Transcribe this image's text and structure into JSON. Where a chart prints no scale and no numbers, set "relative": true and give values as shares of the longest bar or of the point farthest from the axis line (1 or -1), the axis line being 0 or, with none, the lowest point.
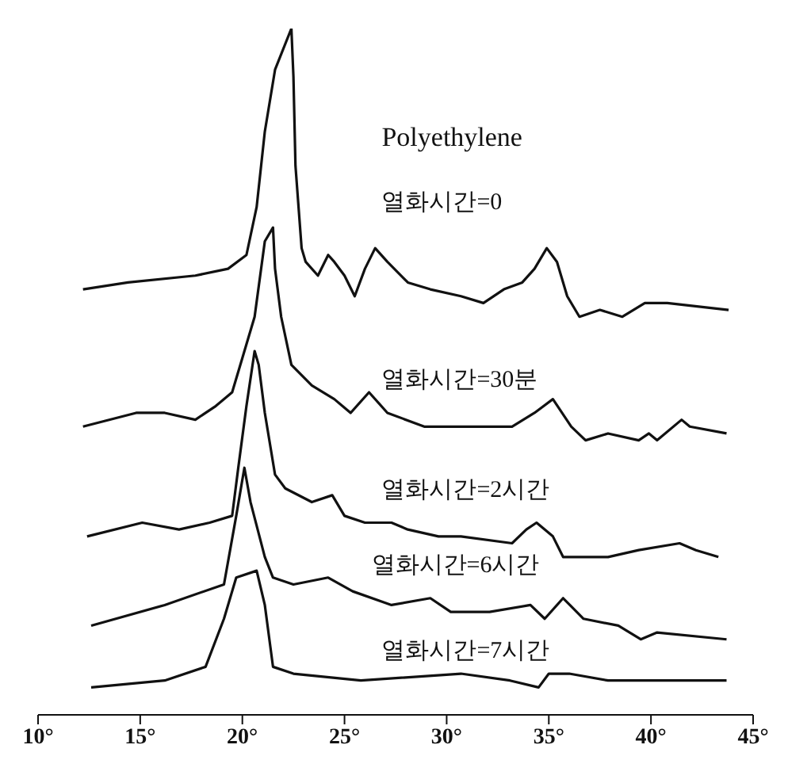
{
  "chart_data": {
    "type": "line",
    "relative": true,
    "annotations": [
      "Polyethylene"
    ],
    "xlim": [
      10,
      45
    ],
    "xticks": [
      {
        "value": 10,
        "label": "10°"
      },
      {
        "value": 15,
        "label": "15°"
      },
      {
        "value": 20,
        "label": "20°"
      },
      {
        "value": 25,
        "label": "25°"
      },
      {
        "value": 30,
        "label": "30°"
      },
      {
        "value": 35,
        "label": "35°"
      },
      {
        "value": 40,
        "label": "40°"
      },
      {
        "value": 45,
        "label": "45°"
      }
    ],
    "tick_labels": "x",
    "grid": false,
    "legend": false,
    "marker": "none",
    "line_style": "solid",
    "series": [
      {
        "name": "열화시간=0",
        "color": "#111111",
        "x": [
          12.2,
          14.4,
          17.7,
          19.3,
          20.2,
          20.7,
          21.1,
          21.6,
          22.4,
          22.5,
          22.6,
          22.9,
          23.1,
          23.7,
          24.2,
          24.5,
          25.0,
          25.5,
          26.0,
          26.5,
          27.1,
          28.1,
          29.2,
          30.7,
          31.8,
          32.8,
          33.7,
          34.3,
          34.9,
          35.4,
          35.9,
          36.5,
          37.5,
          38.6,
          39.7,
          40.8,
          43.8
        ],
        "values": [
          0.62,
          0.63,
          0.64,
          0.65,
          0.67,
          0.74,
          0.85,
          0.94,
          1.0,
          0.93,
          0.8,
          0.68,
          0.66,
          0.64,
          0.67,
          0.66,
          0.64,
          0.61,
          0.65,
          0.68,
          0.66,
          0.63,
          0.62,
          0.61,
          0.6,
          0.62,
          0.63,
          0.65,
          0.68,
          0.66,
          0.61,
          0.58,
          0.59,
          0.58,
          0.6,
          0.6,
          0.59
        ]
      },
      {
        "name": "열화시간=30분",
        "color": "#111111",
        "x": [
          12.2,
          14.8,
          16.2,
          17.7,
          18.7,
          19.5,
          20.0,
          20.6,
          21.1,
          21.5,
          21.6,
          21.9,
          22.4,
          23.4,
          24.5,
          25.3,
          26.2,
          27.1,
          28.9,
          30.7,
          33.2,
          34.3,
          35.2,
          36.1,
          36.8,
          37.9,
          39.4,
          39.9,
          40.3,
          41.5,
          41.9,
          43.7
        ],
        "values": [
          0.42,
          0.44,
          0.44,
          0.43,
          0.45,
          0.47,
          0.52,
          0.58,
          0.69,
          0.71,
          0.65,
          0.58,
          0.51,
          0.48,
          0.46,
          0.44,
          0.47,
          0.44,
          0.42,
          0.42,
          0.42,
          0.44,
          0.46,
          0.42,
          0.4,
          0.41,
          0.4,
          0.41,
          0.4,
          0.43,
          0.42,
          0.41
        ]
      },
      {
        "name": "열화시간=2시간",
        "color": "#111111",
        "x": [
          12.4,
          15.1,
          16.9,
          18.4,
          19.5,
          19.8,
          20.2,
          20.6,
          20.8,
          21.1,
          21.6,
          22.1,
          23.4,
          24.4,
          25.0,
          26.0,
          27.3,
          28.1,
          29.6,
          30.7,
          33.2,
          33.9,
          34.4,
          35.2,
          35.7,
          36.8,
          37.9,
          39.4,
          41.4,
          42.2,
          43.3
        ],
        "values": [
          0.26,
          0.28,
          0.27,
          0.28,
          0.29,
          0.36,
          0.45,
          0.53,
          0.51,
          0.44,
          0.35,
          0.33,
          0.31,
          0.32,
          0.29,
          0.28,
          0.28,
          0.27,
          0.26,
          0.26,
          0.25,
          0.27,
          0.28,
          0.26,
          0.23,
          0.23,
          0.23,
          0.24,
          0.25,
          0.24,
          0.23
        ]
      },
      {
        "name": "열화시간=6시간",
        "color": "#111111",
        "x": [
          12.6,
          16.2,
          19.1,
          19.7,
          20.1,
          20.4,
          21.1,
          21.5,
          22.5,
          24.2,
          25.4,
          27.3,
          29.2,
          30.2,
          32.1,
          34.1,
          34.8,
          35.7,
          36.7,
          38.4,
          39.5,
          40.3,
          43.7
        ],
        "values": [
          0.13,
          0.16,
          0.19,
          0.29,
          0.36,
          0.31,
          0.23,
          0.2,
          0.19,
          0.2,
          0.18,
          0.16,
          0.17,
          0.15,
          0.15,
          0.16,
          0.14,
          0.17,
          0.14,
          0.13,
          0.11,
          0.12,
          0.11
        ]
      },
      {
        "name": "열화시간=7시간",
        "color": "#111111",
        "x": [
          12.6,
          16.2,
          18.2,
          19.1,
          19.7,
          20.7,
          21.1,
          21.5,
          22.5,
          25.8,
          30.7,
          33.1,
          34.5,
          35.0,
          36.0,
          37.9,
          43.7
        ],
        "values": [
          0.04,
          0.05,
          0.07,
          0.14,
          0.2,
          0.21,
          0.16,
          0.07,
          0.06,
          0.05,
          0.06,
          0.05,
          0.04,
          0.06,
          0.06,
          0.05,
          0.05
        ]
      }
    ]
  }
}
